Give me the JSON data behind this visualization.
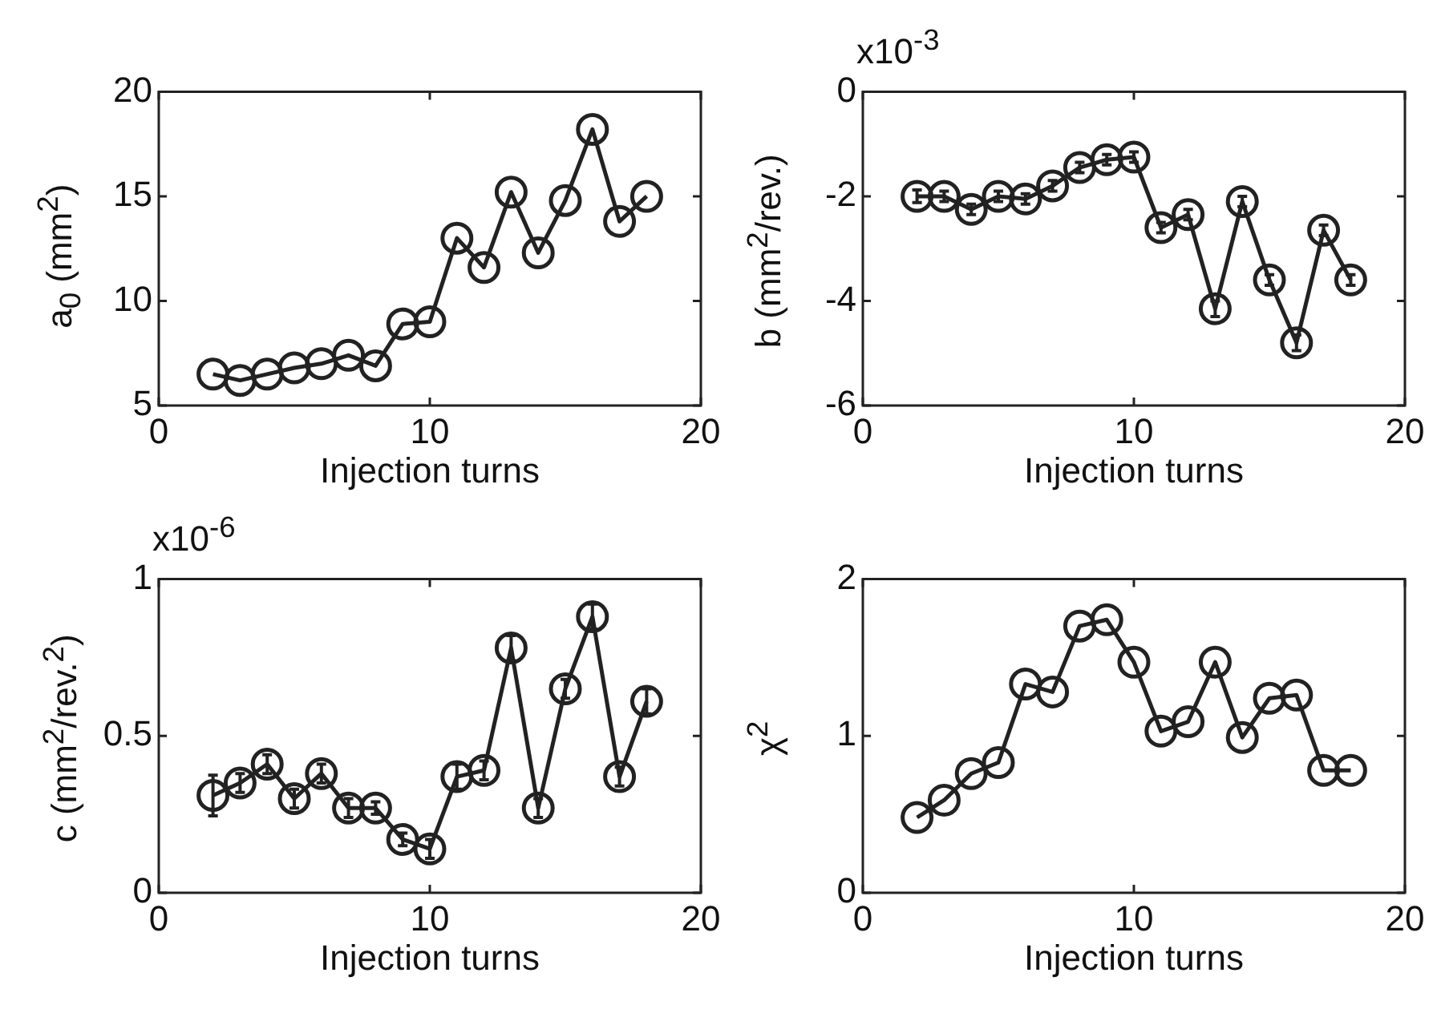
{
  "chart_data": [
    {
      "type": "line",
      "xlabel": "Injection turns",
      "ylabel": "a$_{0}$ (mm$^{2}$)",
      "x": [
        2,
        3,
        4,
        5,
        6,
        7,
        8,
        9,
        10,
        11,
        12,
        13,
        14,
        15,
        16,
        17,
        18
      ],
      "xlim": [
        0,
        20
      ],
      "xticks": [
        0,
        10,
        20
      ],
      "ylim": [
        5,
        20
      ],
      "yticks": [
        5,
        10,
        15,
        20
      ],
      "grid": false,
      "legend": false,
      "marker": "circle",
      "line_style": "solid",
      "series": [
        {
          "color": "#222222",
          "values": [
            6.5,
            6.2,
            6.5,
            6.8,
            7.0,
            7.4,
            6.9,
            8.9,
            9.0,
            13.0,
            11.6,
            15.2,
            12.3,
            14.8,
            18.2,
            13.8,
            15.0
          ]
        }
      ]
    },
    {
      "type": "line",
      "xlabel": "Injection turns",
      "ylabel": "b (mm$^{2}$/rev.)",
      "annotations": [
        "x10$^{-3}$"
      ],
      "x": [
        2,
        3,
        4,
        5,
        6,
        7,
        8,
        9,
        10,
        11,
        12,
        13,
        14,
        15,
        16,
        17,
        18
      ],
      "xlim": [
        0,
        20
      ],
      "xticks": [
        0,
        10,
        20
      ],
      "ylim": [
        -6,
        0
      ],
      "yticks": [
        -6,
        -4,
        -2,
        0
      ],
      "grid": false,
      "legend": false,
      "marker": "circle",
      "line_style": "solid",
      "series": [
        {
          "color": "#222222",
          "values": [
            -2.0,
            -2.0,
            -2.25,
            -2.0,
            -2.05,
            -1.8,
            -1.45,
            -1.3,
            -1.25,
            -2.6,
            -2.35,
            -4.15,
            -2.1,
            -3.6,
            -4.8,
            -2.65,
            -3.6
          ],
          "errors": [
            0.12,
            0.1,
            0.1,
            0.1,
            0.1,
            0.1,
            0.1,
            0.1,
            0.1,
            0.1,
            0.1,
            0.15,
            0.1,
            0.1,
            0.15,
            0.1,
            0.1
          ]
        }
      ]
    },
    {
      "type": "line",
      "xlabel": "Injection turns",
      "ylabel": "c (mm$^{2}$/rev.$^{2}$)",
      "annotations": [
        "x10$^{-6}$"
      ],
      "x": [
        2,
        3,
        4,
        5,
        6,
        7,
        8,
        9,
        10,
        11,
        12,
        13,
        14,
        15,
        16,
        17,
        18
      ],
      "xlim": [
        0,
        20
      ],
      "xticks": [
        0,
        10,
        20
      ],
      "ylim": [
        0,
        1
      ],
      "yticks": [
        0,
        0.5,
        1
      ],
      "grid": false,
      "legend": false,
      "marker": "circle",
      "line_style": "solid",
      "series": [
        {
          "color": "#222222",
          "values": [
            0.31,
            0.35,
            0.41,
            0.3,
            0.38,
            0.27,
            0.27,
            0.17,
            0.14,
            0.37,
            0.39,
            0.78,
            0.27,
            0.65,
            0.88,
            0.37,
            0.61
          ],
          "errors": [
            0.065,
            0.03,
            0.03,
            0.03,
            0.03,
            0.03,
            0.02,
            0.02,
            0.03,
            0.04,
            0.03,
            0.04,
            0.03,
            0.03,
            0.04,
            0.03,
            0.04
          ]
        }
      ]
    },
    {
      "type": "line",
      "xlabel": "Injection turns",
      "ylabel": "χ$^{2}$",
      "x": [
        2,
        3,
        4,
        5,
        6,
        7,
        8,
        9,
        10,
        11,
        12,
        13,
        14,
        15,
        16,
        17,
        18
      ],
      "xlim": [
        0,
        20
      ],
      "xticks": [
        0,
        10,
        20
      ],
      "ylim": [
        0,
        2
      ],
      "yticks": [
        0,
        1,
        2
      ],
      "grid": false,
      "legend": false,
      "marker": "circle",
      "line_style": "solid",
      "series": [
        {
          "color": "#222222",
          "values": [
            0.48,
            0.59,
            0.76,
            0.83,
            1.33,
            1.28,
            1.7,
            1.74,
            1.47,
            1.03,
            1.09,
            1.47,
            0.99,
            1.24,
            1.26,
            0.78,
            0.78
          ]
        }
      ]
    }
  ]
}
